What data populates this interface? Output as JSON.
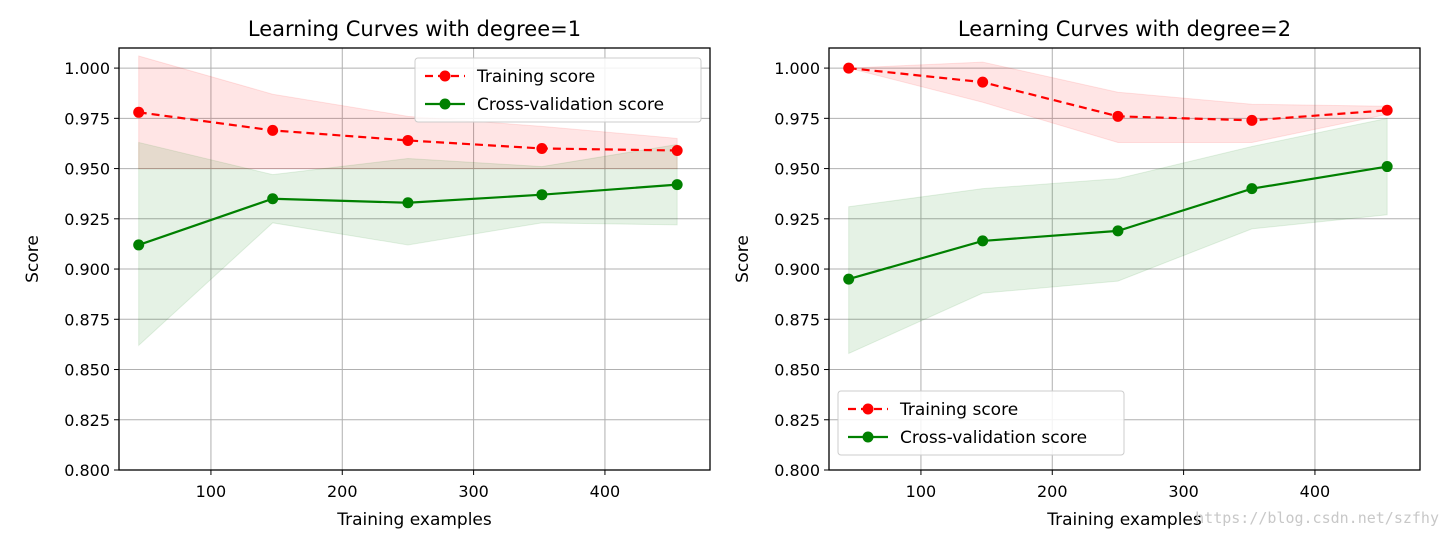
{
  "chart_data": [
    {
      "type": "line",
      "title": "Learning Curves with degree=1",
      "xlabel": "Training examples",
      "ylabel": "Score",
      "xlim": [
        30,
        480
      ],
      "ylim": [
        0.8,
        1.01
      ],
      "xticks": [
        100,
        200,
        300,
        400
      ],
      "xtick_labels": [
        "100",
        "200",
        "300",
        "400"
      ],
      "yticks": [
        0.8,
        0.825,
        0.85,
        0.875,
        0.9,
        0.925,
        0.95,
        0.975,
        1.0
      ],
      "ytick_labels": [
        "0.800",
        "0.825",
        "0.850",
        "0.875",
        "0.900",
        "0.925",
        "0.950",
        "0.975",
        "1.000"
      ],
      "grid": true,
      "legend_position": "upper right",
      "x": [
        45,
        147,
        250,
        352,
        455
      ],
      "series": [
        {
          "name": "Training score",
          "values": [
            0.978,
            0.969,
            0.964,
            0.96,
            0.959
          ],
          "band_low": [
            0.95,
            0.95,
            0.95,
            0.95,
            0.95
          ],
          "band_high": [
            1.006,
            0.987,
            0.976,
            0.971,
            0.965
          ],
          "color": "#ff0000",
          "band_color": "#ff0000",
          "linestyle": "dashed"
        },
        {
          "name": "Cross-validation score",
          "values": [
            0.912,
            0.935,
            0.933,
            0.937,
            0.942
          ],
          "band_low": [
            0.862,
            0.923,
            0.912,
            0.923,
            0.922
          ],
          "band_high": [
            0.963,
            0.947,
            0.955,
            0.951,
            0.962
          ],
          "color": "#008000",
          "band_color": "#008000",
          "linestyle": "solid"
        }
      ]
    },
    {
      "type": "line",
      "title": "Learning Curves with degree=2",
      "xlabel": "Training examples",
      "ylabel": "Score",
      "xlim": [
        30,
        480
      ],
      "ylim": [
        0.8,
        1.01
      ],
      "xticks": [
        100,
        200,
        300,
        400
      ],
      "xtick_labels": [
        "100",
        "200",
        "300",
        "400"
      ],
      "yticks": [
        0.8,
        0.825,
        0.85,
        0.875,
        0.9,
        0.925,
        0.95,
        0.975,
        1.0
      ],
      "ytick_labels": [
        "0.800",
        "0.825",
        "0.850",
        "0.875",
        "0.900",
        "0.925",
        "0.950",
        "0.975",
        "1.000"
      ],
      "grid": true,
      "legend_position": "lower left",
      "x": [
        45,
        147,
        250,
        352,
        455
      ],
      "series": [
        {
          "name": "Training score",
          "values": [
            1.0,
            0.993,
            0.976,
            0.974,
            0.979
          ],
          "band_low": [
            1.0,
            0.983,
            0.963,
            0.963,
            0.977
          ],
          "band_high": [
            1.0,
            1.003,
            0.988,
            0.982,
            0.981
          ],
          "color": "#ff0000",
          "band_color": "#ff0000",
          "linestyle": "dashed"
        },
        {
          "name": "Cross-validation score",
          "values": [
            0.895,
            0.914,
            0.919,
            0.94,
            0.951
          ],
          "band_low": [
            0.858,
            0.888,
            0.894,
            0.92,
            0.927
          ],
          "band_high": [
            0.931,
            0.94,
            0.945,
            0.961,
            0.975
          ],
          "color": "#008000",
          "band_color": "#008000",
          "linestyle": "solid"
        }
      ]
    }
  ],
  "watermark": "https://blog.csdn.net/szfhy"
}
